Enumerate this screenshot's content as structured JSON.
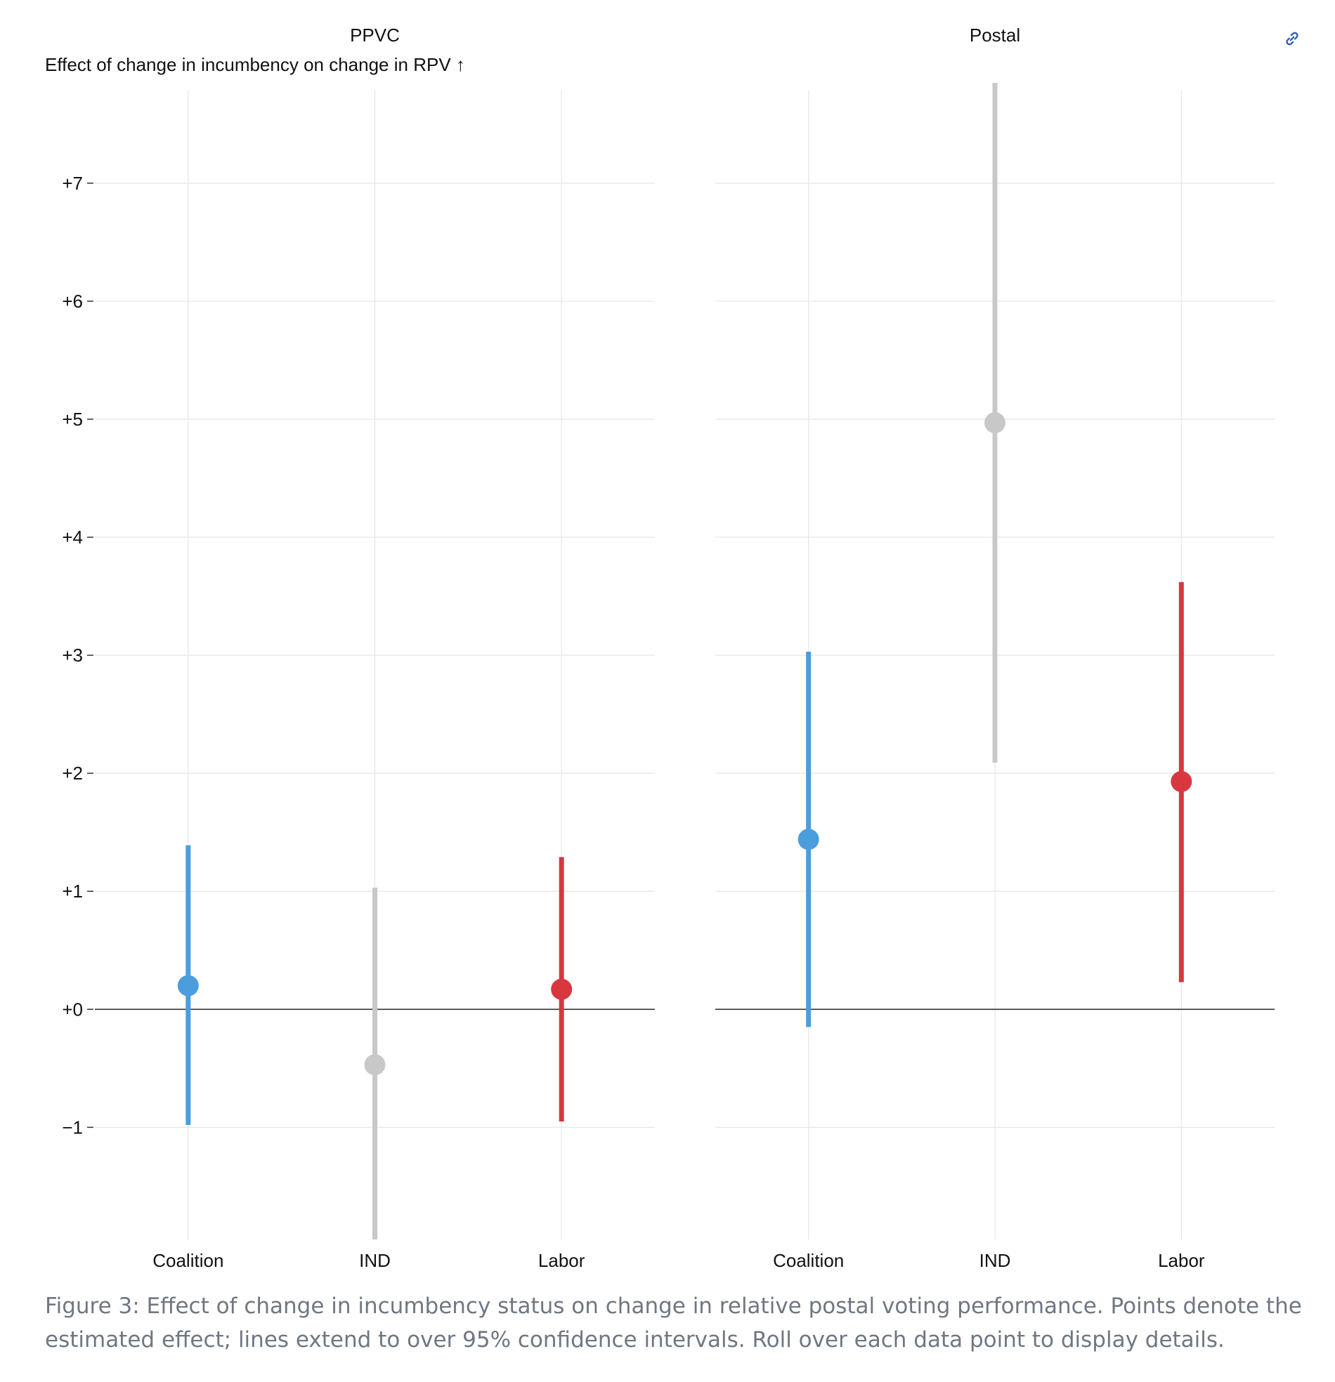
{
  "chart_data": {
    "type": "scatter",
    "ylabel": "Effect of change in incumbency on change in RPV ↑",
    "ylim": [
      -1.95,
      7.85
    ],
    "yticks": [
      -1,
      0,
      1,
      2,
      3,
      4,
      5,
      6,
      7
    ],
    "ytick_labels": [
      "−1",
      "+0",
      "+1",
      "+2",
      "+3",
      "+4",
      "+5",
      "+6",
      "+7"
    ],
    "grid": true,
    "reference_line": 0,
    "categories": [
      "Coalition",
      "IND",
      "Labor"
    ],
    "colors": {
      "Coalition": "#4a9ede",
      "IND": "#c8c8c8",
      "Labor": "#d8373f"
    },
    "panels": [
      {
        "title": "PPVC",
        "points": [
          {
            "category": "Coalition",
            "estimate": 0.2,
            "lower": -0.98,
            "upper": 1.39
          },
          {
            "category": "IND",
            "estimate": -0.47,
            "lower": -1.95,
            "upper": 1.03
          },
          {
            "category": "Labor",
            "estimate": 0.17,
            "lower": -0.95,
            "upper": 1.29
          }
        ]
      },
      {
        "title": "Postal",
        "points": [
          {
            "category": "Coalition",
            "estimate": 1.44,
            "lower": -0.15,
            "upper": 3.03
          },
          {
            "category": "IND",
            "estimate": 4.97,
            "lower": 2.09,
            "upper": 7.85
          },
          {
            "category": "Labor",
            "estimate": 1.93,
            "lower": 0.23,
            "upper": 3.62
          }
        ]
      }
    ]
  },
  "link_icon": "link-icon",
  "caption": "Figure 3: Effect of change in incumbency status on change in relative postal voting performance. Points denote the estimated effect; lines extend to over 95% confidence intervals. Roll over each data point to display details."
}
